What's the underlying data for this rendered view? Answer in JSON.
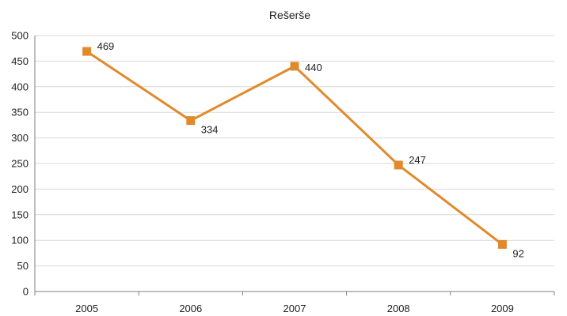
{
  "chart_data": {
    "type": "line",
    "title": "Rešerše",
    "xlabel": "",
    "ylabel": "",
    "categories": [
      "2005",
      "2006",
      "2007",
      "2008",
      "2009"
    ],
    "series": [
      {
        "values": [
          469,
          334,
          440,
          247,
          92
        ],
        "color": "#e08a2c"
      }
    ],
    "ylim": [
      0,
      500
    ],
    "yticks": [
      "0",
      "50",
      "100",
      "150",
      "200",
      "250",
      "300",
      "350",
      "400",
      "450",
      "500"
    ],
    "grid": true,
    "legend": "none",
    "data_labels": true,
    "marker": "square"
  }
}
